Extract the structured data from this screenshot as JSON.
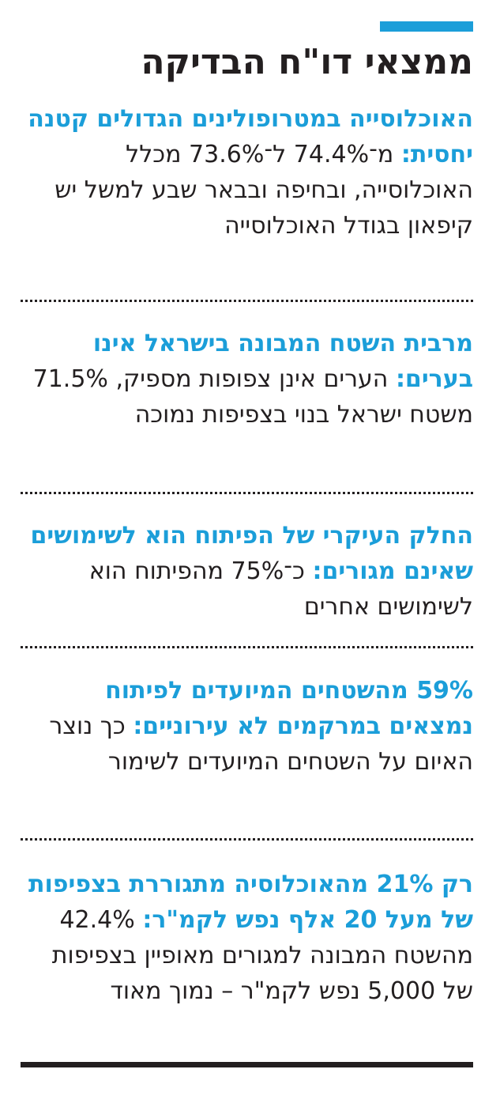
{
  "colors": {
    "accent": "#1b9ed9",
    "text": "#231f20"
  },
  "title": "ממצאי דו\"ח הבדיקה",
  "findings": [
    {
      "headline": "האוכלוסייה במטרופולינים הגדולים קטנה יחסית:",
      "body": "מ־74.4% ל־73.6% מכלל האוכלוסייה, ובחיפה ובבאר שבע למשל יש קיפאון בגודל האוכלוסייה"
    },
    {
      "headline": "מרבית השטח המבונה בישראל אינו בערים:",
      "body": "הערים אינן צפופות מספיק, 71.5% משטח ישראל בנוי בצפיפות נמוכה"
    },
    {
      "headline": "החלק העיקרי של הפיתוח הוא לשימושים שאינם מגורים:",
      "body": "כ־75% מהפיתוח הוא לשימושים אחרים"
    },
    {
      "headline": "59% מהשטחים המיועדים לפיתוח נמצאים במרקמים לא עירוניים:",
      "body": "כך נוצר האיום על השטחים המיועדים לשימור"
    },
    {
      "headline": "רק 21% מהאוכלוסיה מתגוררת בצפיפות של מעל 20 אלף נפש לקמ\"ר:",
      "body": "42.4% מהשטח המבונה למגורים מאופיין בצפיפות של 5,000 נפש לקמ\"ר – נמוך מאוד"
    }
  ]
}
